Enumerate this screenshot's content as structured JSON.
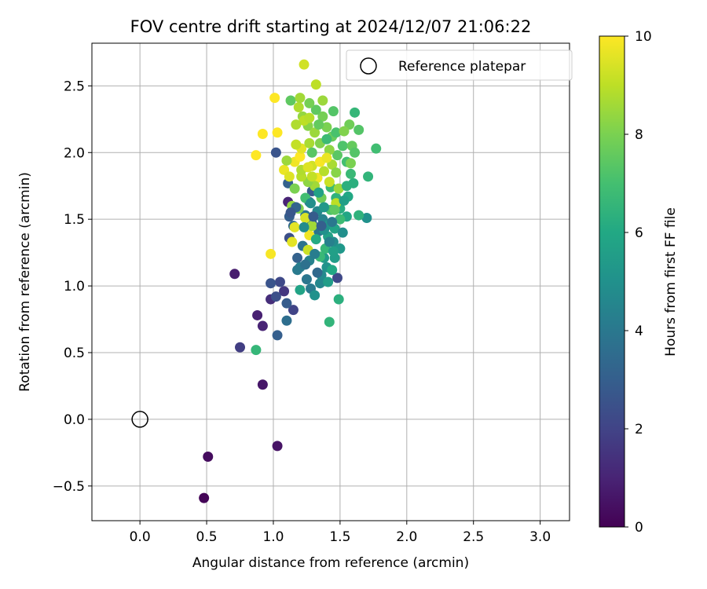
{
  "chart_data": {
    "type": "scatter",
    "title": "FOV centre drift starting at 2024/12/07 21:06:22",
    "xlabel": "Angular distance from reference (arcmin)",
    "ylabel": "Rotation from reference (arcmin)",
    "xlim": [
      -0.36,
      3.22
    ],
    "ylim": [
      -0.76,
      2.82
    ],
    "xticks": [
      0.0,
      0.5,
      1.0,
      1.5,
      2.0,
      2.5,
      3.0
    ],
    "xtick_labels": [
      "0.0",
      "0.5",
      "1.0",
      "1.5",
      "2.0",
      "2.5",
      "3.0"
    ],
    "yticks": [
      -0.5,
      0.0,
      0.5,
      1.0,
      1.5,
      2.0,
      2.5
    ],
    "ytick_labels": [
      "−0.5",
      "0.0",
      "0.5",
      "1.0",
      "1.5",
      "2.0",
      "2.5"
    ],
    "grid": true,
    "legend": {
      "position": "top-right",
      "entries": [
        "Reference platepar"
      ]
    },
    "reference_point": {
      "x": 0.0,
      "y": 0.0
    },
    "colorbar": {
      "label": "Hours from first FF file",
      "range": [
        0,
        10
      ],
      "ticks": [
        0,
        2,
        4,
        6,
        8,
        10
      ],
      "tick_labels": [
        "0",
        "2",
        "4",
        "6",
        "8",
        "10"
      ],
      "colormap": "viridis",
      "colors": [
        "#440154",
        "#482475",
        "#414487",
        "#355f8d",
        "#2a788e",
        "#21918c",
        "#22a884",
        "#44bf70",
        "#7ad151",
        "#bddf26",
        "#fde725"
      ]
    },
    "series": [
      {
        "columns": [
          "x",
          "y",
          "hours"
        ],
        "points": [
          [
            0.48,
            -0.59,
            0.1
          ],
          [
            0.51,
            -0.28,
            0.3
          ],
          [
            1.03,
            -0.2,
            0.5
          ],
          [
            0.92,
            0.26,
            0.6
          ],
          [
            0.71,
            1.09,
            0.8
          ],
          [
            0.88,
            0.78,
            0.9
          ],
          [
            0.92,
            0.7,
            1.0
          ],
          [
            0.98,
            0.9,
            1.3
          ],
          [
            1.08,
            0.96,
            1.6
          ],
          [
            0.75,
            0.54,
            1.8
          ],
          [
            1.15,
            0.82,
            2.0
          ],
          [
            1.03,
            0.63,
            3.0
          ],
          [
            1.1,
            0.74,
            3.6
          ],
          [
            1.48,
            1.06,
            2.2
          ],
          [
            1.02,
            0.92,
            2.4
          ],
          [
            1.05,
            1.03,
            2.2
          ],
          [
            0.98,
            1.02,
            2.6
          ],
          [
            1.1,
            0.87,
            2.9
          ],
          [
            0.87,
            0.52,
            6.6
          ],
          [
            1.42,
            0.73,
            6.5
          ],
          [
            1.49,
            0.9,
            6.3
          ],
          [
            1.02,
            2.0,
            2.6
          ],
          [
            1.11,
            1.77,
            3.1
          ],
          [
            1.11,
            1.63,
            1.0
          ],
          [
            1.12,
            1.52,
            3.0
          ],
          [
            1.12,
            1.36,
            2.4
          ],
          [
            1.18,
            1.21,
            3.1
          ],
          [
            1.15,
            1.45,
            3.4
          ],
          [
            1.2,
            1.14,
            4.3
          ],
          [
            1.22,
            1.3,
            3.8
          ],
          [
            1.27,
            1.19,
            4.4
          ],
          [
            1.25,
            1.05,
            3.9
          ],
          [
            1.28,
            0.98,
            4.1
          ],
          [
            1.31,
            0.93,
            5.0
          ],
          [
            1.2,
            0.97,
            5.8
          ],
          [
            1.36,
            1.08,
            4.7
          ],
          [
            1.38,
            1.21,
            5.4
          ],
          [
            1.4,
            1.14,
            5.1
          ],
          [
            1.44,
            1.12,
            6.0
          ],
          [
            1.46,
            1.21,
            5.5
          ],
          [
            1.45,
            1.33,
            4.8
          ],
          [
            1.5,
            1.28,
            5.3
          ],
          [
            1.41,
            1.37,
            5.7
          ],
          [
            1.34,
            1.41,
            3.8
          ],
          [
            1.29,
            1.47,
            3.3
          ],
          [
            1.24,
            1.53,
            4.0
          ],
          [
            1.27,
            1.63,
            3.5
          ],
          [
            1.29,
            1.71,
            2.8
          ],
          [
            1.33,
            1.56,
            4.6
          ],
          [
            1.37,
            1.5,
            4.4
          ],
          [
            1.42,
            1.46,
            5.2
          ],
          [
            1.46,
            1.43,
            5.8
          ],
          [
            1.52,
            1.4,
            4.9
          ],
          [
            1.55,
            1.52,
            5.9
          ],
          [
            1.5,
            1.58,
            6.2
          ],
          [
            1.47,
            1.66,
            6.4
          ],
          [
            1.43,
            1.74,
            6.8
          ],
          [
            1.56,
            1.67,
            6.0
          ],
          [
            1.6,
            1.77,
            6.3
          ],
          [
            1.58,
            1.84,
            6.7
          ],
          [
            1.55,
            1.93,
            7.0
          ],
          [
            1.52,
            2.05,
            7.2
          ],
          [
            1.48,
            1.98,
            7.4
          ],
          [
            1.44,
            2.12,
            7.7
          ],
          [
            1.4,
            2.19,
            8.0
          ],
          [
            1.37,
            2.27,
            7.9
          ],
          [
            1.32,
            2.32,
            7.5
          ],
          [
            1.26,
            2.2,
            8.2
          ],
          [
            1.22,
            2.27,
            8.4
          ],
          [
            1.19,
            2.34,
            8.8
          ],
          [
            1.23,
            2.24,
            9.0
          ],
          [
            1.13,
            2.39,
            7.5
          ],
          [
            1.17,
            2.21,
            8.8
          ],
          [
            1.2,
            2.41,
            8.6
          ],
          [
            1.27,
            2.37,
            7.9
          ],
          [
            1.32,
            2.51,
            9.0
          ],
          [
            1.23,
            2.66,
            9.3
          ],
          [
            1.37,
            2.39,
            8.5
          ],
          [
            1.45,
            2.31,
            7.3
          ],
          [
            1.61,
            2.3,
            6.6
          ],
          [
            1.57,
            2.21,
            7.8
          ],
          [
            1.64,
            2.17,
            7.3
          ],
          [
            1.59,
            2.05,
            7.6
          ],
          [
            1.77,
            2.03,
            6.9
          ],
          [
            1.71,
            1.82,
            6.5
          ],
          [
            1.7,
            1.51,
            5.0
          ],
          [
            1.64,
            1.53,
            6.4
          ],
          [
            1.01,
            2.41,
            10.0
          ],
          [
            1.03,
            2.15,
            10.0
          ],
          [
            0.92,
            2.14,
            10.0
          ],
          [
            0.87,
            1.98,
            10.0
          ],
          [
            1.08,
            1.87,
            9.7
          ],
          [
            1.12,
            1.82,
            9.5
          ],
          [
            1.16,
            1.93,
            9.8
          ],
          [
            1.2,
            1.97,
            10.0
          ],
          [
            1.21,
            2.03,
            9.6
          ],
          [
            1.27,
            2.07,
            8.7
          ],
          [
            1.29,
            1.9,
            9.3
          ],
          [
            1.33,
            1.81,
            9.8
          ],
          [
            1.35,
            1.93,
            9.9
          ],
          [
            1.38,
            1.86,
            8.9
          ],
          [
            1.42,
            1.78,
            9.2
          ],
          [
            1.44,
            1.91,
            8.7
          ],
          [
            1.47,
            1.85,
            8.2
          ],
          [
            1.49,
            1.73,
            8.5
          ],
          [
            1.47,
            1.62,
            9.0
          ],
          [
            1.36,
            1.66,
            7.8
          ],
          [
            1.31,
            1.75,
            8.6
          ],
          [
            1.26,
            1.78,
            8.3
          ],
          [
            1.21,
            1.82,
            8.9
          ],
          [
            1.16,
            1.73,
            8.0
          ],
          [
            1.14,
            1.6,
            8.4
          ],
          [
            1.16,
            1.44,
            9.6
          ],
          [
            1.19,
            1.58,
            8.1
          ],
          [
            1.24,
            1.51,
            9.4
          ],
          [
            1.27,
            1.38,
            9.8
          ],
          [
            1.26,
            1.27,
            9.2
          ],
          [
            1.14,
            1.33,
            9.6
          ],
          [
            0.98,
            1.24,
            9.9
          ],
          [
            1.29,
            1.45,
            8.6
          ],
          [
            1.24,
            1.66,
            6.9
          ],
          [
            1.35,
            1.22,
            6.7
          ],
          [
            1.32,
            1.35,
            6.1
          ],
          [
            1.39,
            1.28,
            6.6
          ],
          [
            1.43,
            1.57,
            7.1
          ],
          [
            1.5,
            1.5,
            6.8
          ],
          [
            1.53,
            1.64,
            5.6
          ],
          [
            1.29,
            2.0,
            7.4
          ],
          [
            1.35,
            2.07,
            8.1
          ],
          [
            1.42,
            2.02,
            8.3
          ],
          [
            1.47,
            2.15,
            7.1
          ],
          [
            1.4,
            2.1,
            6.8
          ],
          [
            1.31,
            2.15,
            8.5
          ],
          [
            1.27,
            2.26,
            8.9
          ],
          [
            1.34,
            2.21,
            7.6
          ],
          [
            1.46,
            1.57,
            7.5
          ],
          [
            1.1,
            1.94,
            8.5
          ],
          [
            1.21,
            1.87,
            8.8
          ],
          [
            1.29,
            1.82,
            9.1
          ],
          [
            1.34,
            1.7,
            5.7
          ],
          [
            1.38,
            1.59,
            5.3
          ],
          [
            1.42,
            1.33,
            4.3
          ],
          [
            1.45,
            1.26,
            5.6
          ],
          [
            1.23,
            1.44,
            4.8
          ],
          [
            1.17,
            1.59,
            3.2
          ],
          [
            1.13,
            1.55,
            2.7
          ],
          [
            1.18,
            1.12,
            4.1
          ],
          [
            1.35,
            1.02,
            4.6
          ],
          [
            1.24,
            1.16,
            3.7
          ],
          [
            1.31,
            1.24,
            4.2
          ],
          [
            1.38,
            1.42,
            5.0
          ],
          [
            1.55,
            1.75,
            6.3
          ],
          [
            1.58,
            1.92,
            8.0
          ],
          [
            1.61,
            2.0,
            7.3
          ],
          [
            1.53,
            2.16,
            8.1
          ],
          [
            1.3,
            1.52,
            2.9
          ],
          [
            1.26,
            1.89,
            9.5
          ],
          [
            1.4,
            1.96,
            9.7
          ],
          [
            1.17,
            2.06,
            9.1
          ],
          [
            1.36,
            1.45,
            3.0
          ],
          [
            1.44,
            1.48,
            4.0
          ],
          [
            1.28,
            1.62,
            4.9
          ],
          [
            1.33,
            1.1,
            3.4
          ],
          [
            1.41,
            1.03,
            5.5
          ]
        ]
      }
    ]
  }
}
